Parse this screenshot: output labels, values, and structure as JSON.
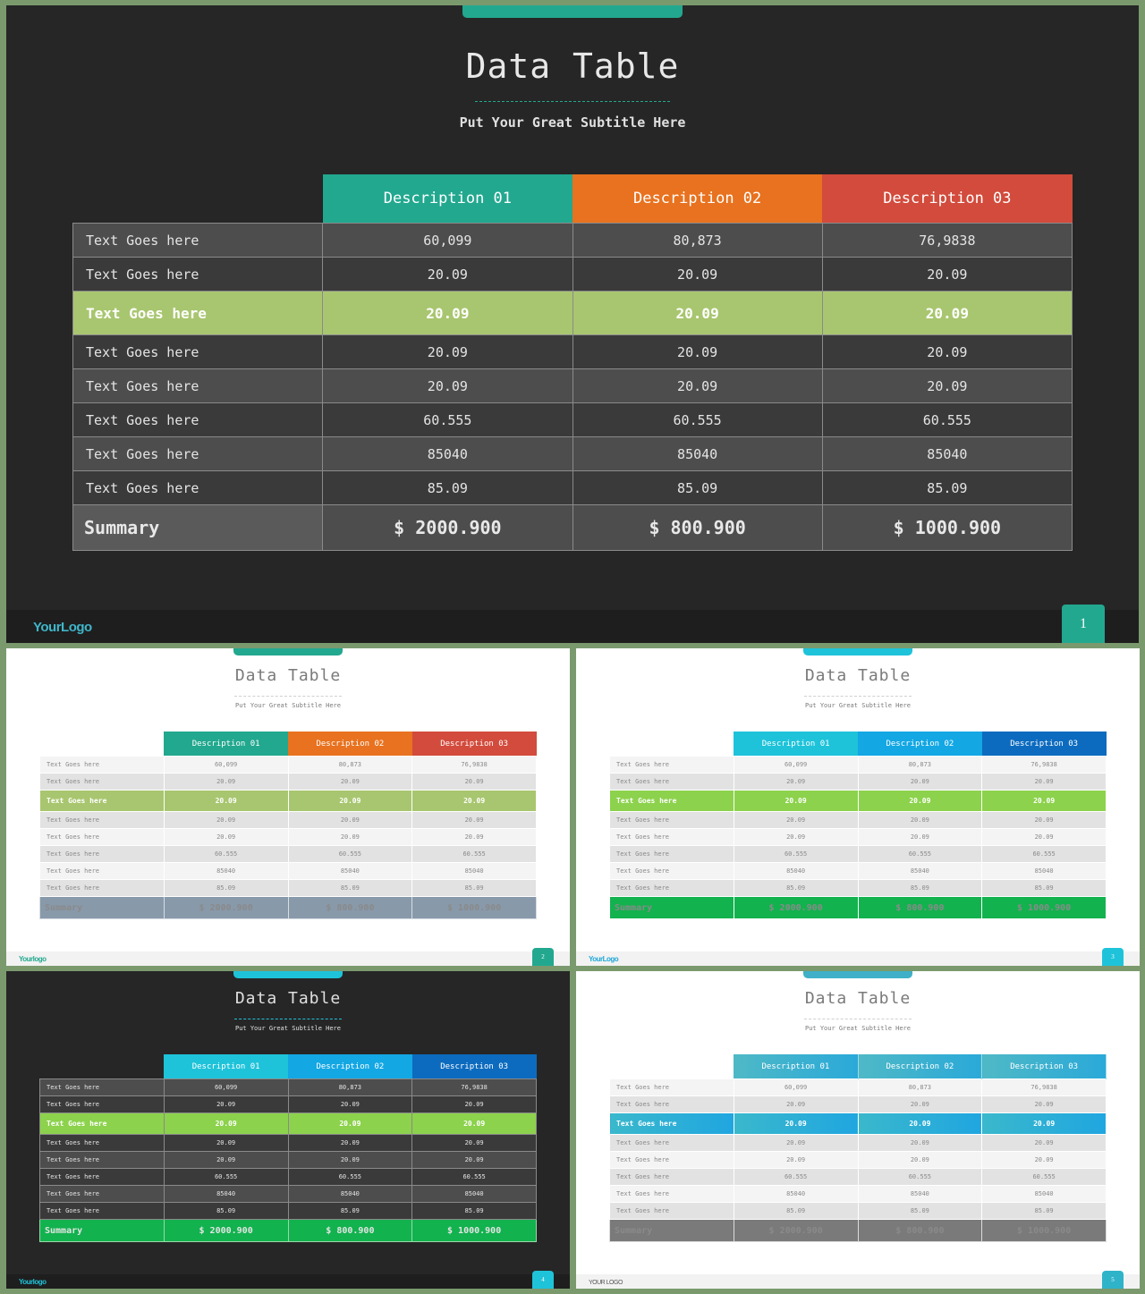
{
  "slides": [
    {
      "id": "s1",
      "title": "Data Table",
      "subtitle": "Put Your Great Subtitle Here",
      "logo": "YourLogo",
      "page": "1",
      "header_colors": [
        "#22a88f",
        "#e8721f",
        "#d24b3c"
      ],
      "headers": [
        "Description  01",
        "Description  02",
        "Description  03"
      ],
      "rows": [
        {
          "label": "Text Goes here",
          "values": [
            "60,099",
            "80,873",
            "76,9838"
          ]
        },
        {
          "label": "Text Goes here",
          "values": [
            "20.09",
            "20.09",
            "20.09"
          ]
        },
        {
          "label": "Text Goes here",
          "values": [
            "20.09",
            "20.09",
            "20.09"
          ],
          "highlight": true
        },
        {
          "label": "Text Goes here",
          "values": [
            "20.09",
            "20.09",
            "20.09"
          ]
        },
        {
          "label": "Text Goes here",
          "values": [
            "20.09",
            "20.09",
            "20.09"
          ]
        },
        {
          "label": "Text Goes here",
          "values": [
            "60.555",
            "60.555",
            "60.555"
          ]
        },
        {
          "label": "Text Goes here",
          "values": [
            "85040",
            "85040",
            "85040"
          ]
        },
        {
          "label": "Text Goes here",
          "values": [
            "85.09",
            "85.09",
            "85.09"
          ]
        }
      ],
      "summary": {
        "label": "Summary",
        "values": [
          "$ 2000.900",
          "$ 800.900",
          "$ 1000.900"
        ]
      }
    },
    {
      "id": "s2",
      "title": "Data Table",
      "subtitle": "Put Your Great Subtitle Here",
      "logo": "Yourlogo",
      "page": "2",
      "header_colors": [
        "#22a88f",
        "#e8721f",
        "#d24b3c"
      ],
      "headers": [
        "Description 01",
        "Description 02",
        "Description 03"
      ],
      "rows": [
        {
          "label": "Text Goes here",
          "values": [
            "60,099",
            "80,873",
            "76,9838"
          ]
        },
        {
          "label": "Text Goes here",
          "values": [
            "20.09",
            "20.09",
            "20.09"
          ]
        },
        {
          "label": "Text Goes here",
          "values": [
            "20.09",
            "20.09",
            "20.09"
          ],
          "highlight": true
        },
        {
          "label": "Text Goes here",
          "values": [
            "20.09",
            "20.09",
            "20.09"
          ]
        },
        {
          "label": "Text Goes here",
          "values": [
            "20.09",
            "20.09",
            "20.09"
          ]
        },
        {
          "label": "Text Goes here",
          "values": [
            "60.555",
            "60.555",
            "60.555"
          ]
        },
        {
          "label": "Text Goes here",
          "values": [
            "85040",
            "85040",
            "85040"
          ]
        },
        {
          "label": "Text Goes here",
          "values": [
            "85.09",
            "85.09",
            "85.09"
          ]
        }
      ],
      "summary": {
        "label": "Summary",
        "values": [
          "$ 2000.900",
          "$ 800.900",
          "$ 1000.900"
        ]
      }
    },
    {
      "id": "s3",
      "title": "Data Table",
      "subtitle": "Put Your Great Subtitle Here",
      "logo": "YourLogo",
      "page": "3",
      "header_colors": [
        "#1ec3da",
        "#13a7e4",
        "#0c6bbf"
      ],
      "headers": [
        "Description 01",
        "Description 02",
        "Description 03"
      ],
      "rows": [
        {
          "label": "Text Goes here",
          "values": [
            "60,099",
            "80,873",
            "76,9838"
          ]
        },
        {
          "label": "Text Goes here",
          "values": [
            "20.09",
            "20.09",
            "20.09"
          ]
        },
        {
          "label": "Text Goes here",
          "values": [
            "20.09",
            "20.09",
            "20.09"
          ],
          "highlight": true
        },
        {
          "label": "Text Goes here",
          "values": [
            "20.09",
            "20.09",
            "20.09"
          ]
        },
        {
          "label": "Text Goes here",
          "values": [
            "20.09",
            "20.09",
            "20.09"
          ]
        },
        {
          "label": "Text Goes here",
          "values": [
            "60.555",
            "60.555",
            "60.555"
          ]
        },
        {
          "label": "Text Goes here",
          "values": [
            "85040",
            "85040",
            "85040"
          ]
        },
        {
          "label": "Text Goes here",
          "values": [
            "85.09",
            "85.09",
            "85.09"
          ]
        }
      ],
      "summary": {
        "label": "Summary",
        "values": [
          "$ 2000.900",
          "$ 800.900",
          "$ 1000.900"
        ]
      }
    },
    {
      "id": "s4",
      "title": "Data Table",
      "subtitle": "Put Your Great Subtitle Here",
      "logo": "Yourlogo",
      "page": "4",
      "header_colors": [
        "#1ec3da",
        "#13a7e4",
        "#0c6bbf"
      ],
      "headers": [
        "Description 01",
        "Description 02",
        "Description 03"
      ],
      "rows": [
        {
          "label": "Text Goes here",
          "values": [
            "60,099",
            "80,873",
            "76,9838"
          ]
        },
        {
          "label": "Text Goes here",
          "values": [
            "20.09",
            "20.09",
            "20.09"
          ]
        },
        {
          "label": "Text Goes here",
          "values": [
            "20.09",
            "20.09",
            "20.09"
          ],
          "highlight": true
        },
        {
          "label": "Text Goes here",
          "values": [
            "20.09",
            "20.09",
            "20.09"
          ]
        },
        {
          "label": "Text Goes here",
          "values": [
            "20.09",
            "20.09",
            "20.09"
          ]
        },
        {
          "label": "Text Goes here",
          "values": [
            "60.555",
            "60.555",
            "60.555"
          ]
        },
        {
          "label": "Text Goes here",
          "values": [
            "85040",
            "85040",
            "85040"
          ]
        },
        {
          "label": "Text Goes here",
          "values": [
            "85.09",
            "85.09",
            "85.09"
          ]
        }
      ],
      "summary": {
        "label": "Summary",
        "values": [
          "$ 2000.900",
          "$ 800.900",
          "$ 1000.900"
        ]
      }
    },
    {
      "id": "s5",
      "title": "Data Table",
      "subtitle": "Put Your Great Subtitle Here",
      "logo": "YOUR LOGO",
      "page": "5",
      "header_colors": [
        "#4fb9c6",
        "#3cb2d0",
        "#2aa9d9"
      ],
      "headers": [
        "Description 01",
        "Description 02",
        "Description 03"
      ],
      "rows": [
        {
          "label": "Text Goes here",
          "values": [
            "60,099",
            "80,873",
            "76,9838"
          ]
        },
        {
          "label": "Text Goes here",
          "values": [
            "20.09",
            "20.09",
            "20.09"
          ]
        },
        {
          "label": "Text Goes here",
          "values": [
            "20.09",
            "20.09",
            "20.09"
          ],
          "highlight": true
        },
        {
          "label": "Text Goes here",
          "values": [
            "20.09",
            "20.09",
            "20.09"
          ]
        },
        {
          "label": "Text Goes here",
          "values": [
            "20.09",
            "20.09",
            "20.09"
          ]
        },
        {
          "label": "Text Goes here",
          "values": [
            "60.555",
            "60.555",
            "60.555"
          ]
        },
        {
          "label": "Text Goes here",
          "values": [
            "85040",
            "85040",
            "85040"
          ]
        },
        {
          "label": "Text Goes here",
          "values": [
            "85.09",
            "85.09",
            "85.09"
          ]
        }
      ],
      "summary": {
        "label": "Summary",
        "values": [
          "$ 2000.900",
          "$ 800.900",
          "$ 1000.900"
        ]
      }
    }
  ]
}
